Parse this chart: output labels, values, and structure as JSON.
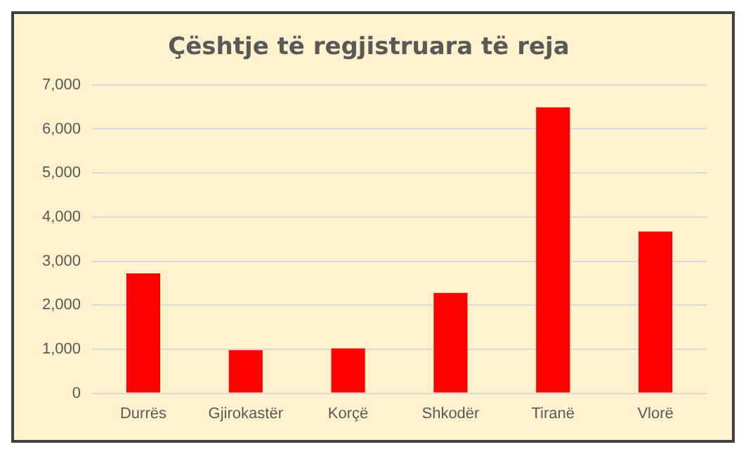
{
  "chart_data": {
    "type": "bar",
    "title": "Çështje të regjistruara të reja",
    "categories": [
      "Durrës",
      "Gjirokastër",
      "Korçë",
      "Shkodër",
      "Tiranë",
      "Vlorë"
    ],
    "values": [
      2720,
      980,
      1020,
      2280,
      6490,
      3670
    ],
    "color": "#ff0000",
    "ylim": [
      0,
      7000
    ],
    "yticks": [
      0,
      {
        "value": 1000,
        "label": "1,000"
      },
      {
        "value": 2000,
        "label": "2,000"
      },
      {
        "value": 3000,
        "label": "3,000"
      },
      {
        "value": 4000,
        "label": "4,000"
      },
      {
        "value": 5000,
        "label": "5,000"
      },
      {
        "value": 6000,
        "label": "6,000"
      },
      {
        "value": 7000,
        "label": "7,000"
      }
    ],
    "grid": "y",
    "legend": false
  }
}
